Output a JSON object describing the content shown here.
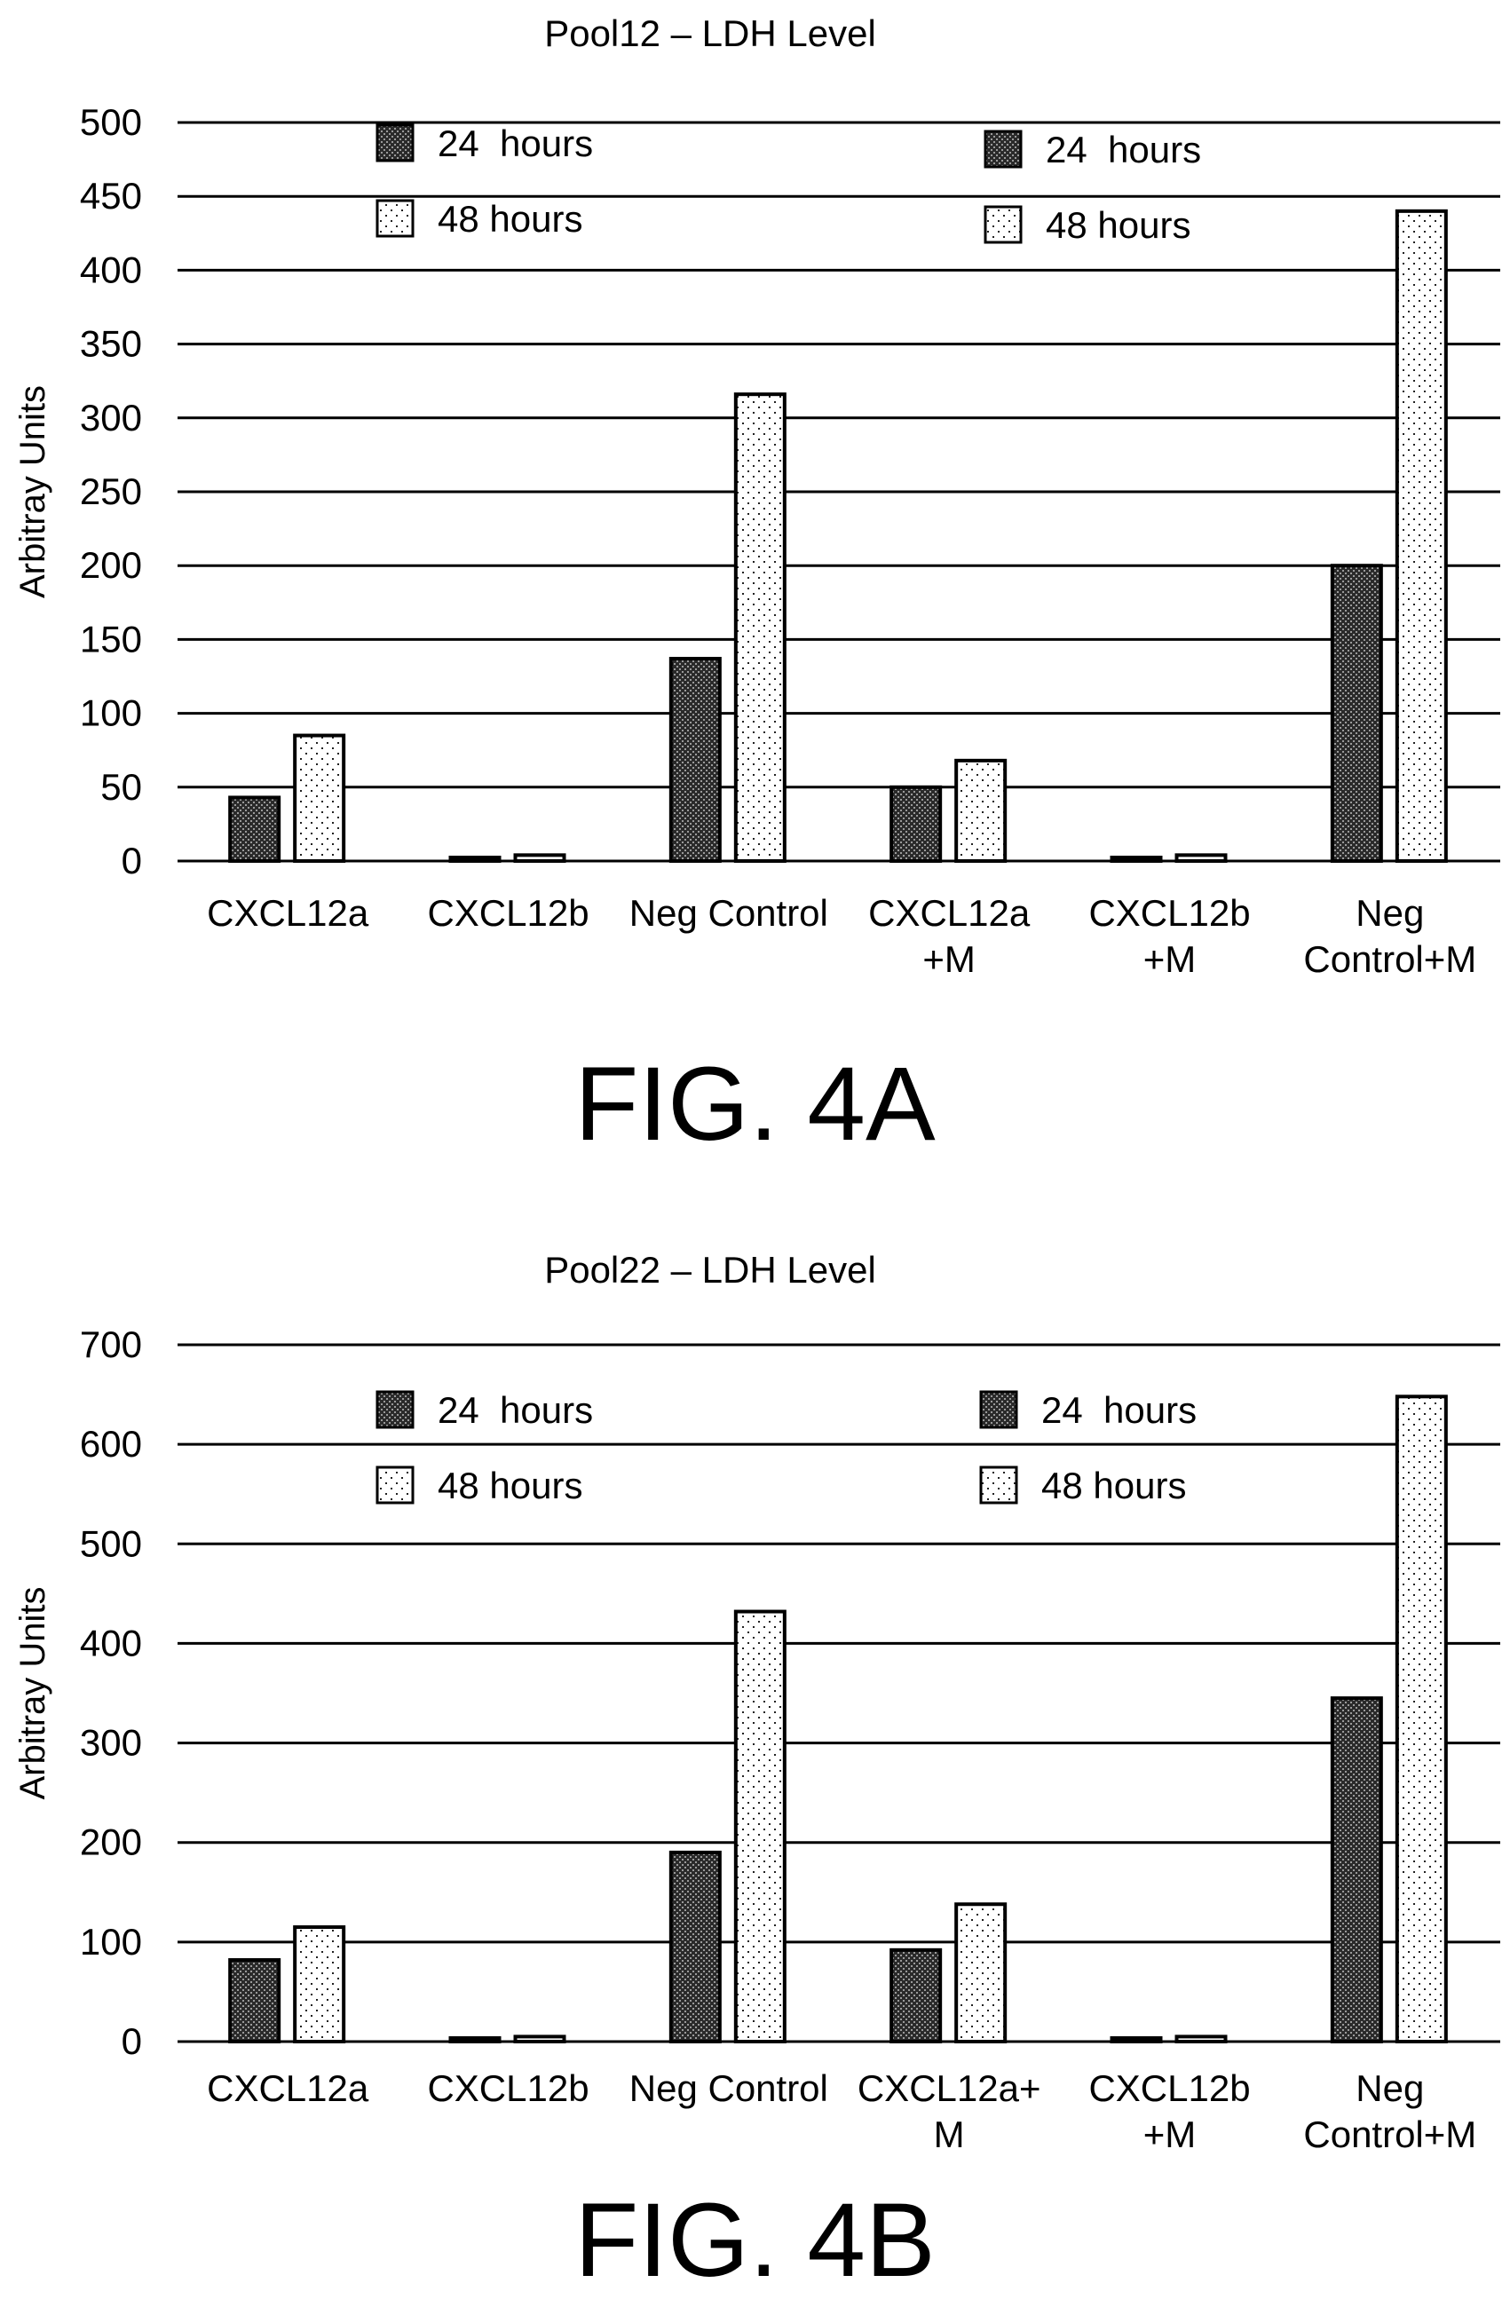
{
  "chart_data": [
    {
      "type": "bar",
      "title": "Pool12 – LDH Level",
      "ylabel": "Arbitray Units",
      "xlabel": "",
      "ylim": [
        0,
        500
      ],
      "yticks": [
        "0",
        "50",
        "100",
        "150",
        "200",
        "250",
        "300",
        "350",
        "400",
        "450",
        "500"
      ],
      "categories": [
        [
          "CXCL12a"
        ],
        [
          "CXCL12b"
        ],
        [
          "Neg Control"
        ],
        [
          "CXCL12a",
          "+M"
        ],
        [
          "CXCL12b",
          "+M"
        ],
        [
          "Neg",
          "Control+M"
        ]
      ],
      "series": [
        {
          "name": "24  hours",
          "pattern": "dark",
          "values": [
            43,
            2,
            137,
            50,
            2,
            200
          ]
        },
        {
          "name": "48 hours",
          "pattern": "light",
          "values": [
            85,
            4,
            316,
            68,
            4,
            440
          ]
        }
      ],
      "legends": [
        {
          "items": [
            "24  hours",
            "48 hours"
          ]
        },
        {
          "items": [
            "24  hours",
            "48 hours"
          ]
        }
      ],
      "grid": true,
      "figure_label": "FIG. 4A"
    },
    {
      "type": "bar",
      "title": "Pool22 – LDH Level",
      "ylabel": "Arbitray Units",
      "xlabel": "",
      "ylim": [
        0,
        700
      ],
      "yticks": [
        "0",
        "100",
        "200",
        "300",
        "400",
        "500",
        "600",
        "700"
      ],
      "categories": [
        [
          "CXCL12a"
        ],
        [
          "CXCL12b"
        ],
        [
          "Neg Control"
        ],
        [
          "CXCL12a+",
          "M"
        ],
        [
          "CXCL12b",
          "+M"
        ],
        [
          "Neg",
          "Control+M"
        ]
      ],
      "series": [
        {
          "name": "24  hours",
          "pattern": "dark",
          "values": [
            82,
            2,
            190,
            92,
            3,
            345
          ]
        },
        {
          "name": "48 hours",
          "pattern": "light",
          "values": [
            115,
            5,
            432,
            138,
            5,
            648
          ]
        }
      ],
      "legends": [
        {
          "items": [
            "24  hours",
            "48 hours"
          ]
        },
        {
          "items": [
            "24  hours",
            "48 hours"
          ]
        }
      ],
      "grid": true,
      "figure_label": "FIG. 4B"
    }
  ]
}
